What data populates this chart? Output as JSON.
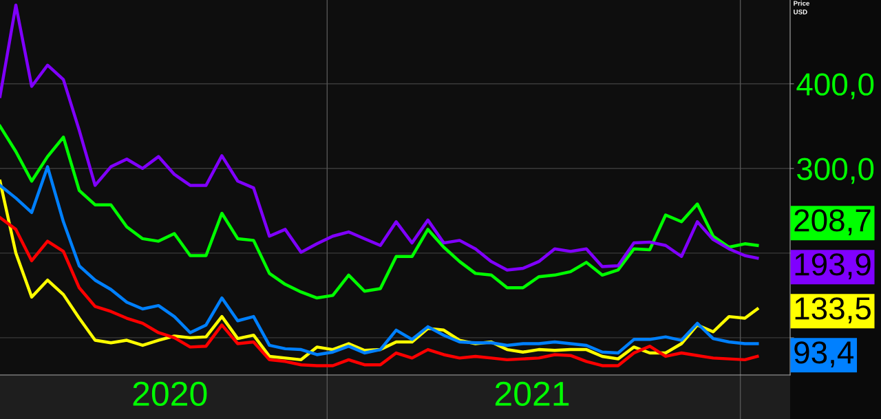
{
  "chart_data": {
    "type": "line",
    "ylabel": "Price\nUSD",
    "x": [
      "2020-03-18",
      "2020-04-01",
      "2020-04-15",
      "2020-04-29",
      "2020-05-13",
      "2020-05-27",
      "2020-06-10",
      "2020-06-24",
      "2020-07-08",
      "2020-07-22",
      "2020-08-05",
      "2020-08-19",
      "2020-09-02",
      "2020-09-16",
      "2020-09-30",
      "2020-10-14",
      "2020-10-28",
      "2020-11-11",
      "2020-11-25",
      "2020-12-09",
      "2020-12-23",
      "2021-01-06",
      "2021-01-20",
      "2021-02-03",
      "2021-02-17",
      "2021-03-03",
      "2021-03-17",
      "2021-03-31",
      "2021-04-14",
      "2021-04-28",
      "2021-05-12",
      "2021-05-26",
      "2021-06-09",
      "2021-06-23",
      "2021-07-07",
      "2021-07-21",
      "2021-08-04",
      "2021-08-18",
      "2021-09-01",
      "2021-09-15",
      "2021-09-29",
      "2021-10-13",
      "2021-10-27",
      "2021-11-10",
      "2021-11-24",
      "2021-12-08",
      "2021-12-22",
      "2022-01-05",
      "2022-01-16"
    ],
    "series": [
      {
        "color": "#00ff00",
        "values": [
          350,
          320,
          285,
          314,
          337,
          274,
          257,
          257,
          231,
          217,
          214,
          223,
          197,
          197,
          247,
          217,
          215,
          176,
          163,
          154,
          147,
          150,
          174,
          155,
          158,
          196,
          196,
          228,
          207,
          190,
          176,
          174,
          159,
          159,
          172,
          174,
          178,
          189,
          174,
          180,
          205,
          204,
          245,
          237,
          258,
          220,
          207,
          211,
          209
        ]
      },
      {
        "color": "#8000ff",
        "values": [
          385,
          493,
          397,
          422,
          405,
          345,
          280,
          302,
          311,
          300,
          314,
          293,
          280,
          280,
          315,
          285,
          277,
          220,
          228,
          201,
          211,
          220,
          225,
          217,
          209,
          237,
          212,
          239,
          212,
          215,
          205,
          190,
          180,
          182,
          190,
          205,
          202,
          205,
          184,
          185,
          212,
          213,
          209,
          196,
          237,
          216,
          205,
          197,
          194
        ]
      },
      {
        "color": "#ffff00",
        "values": [
          285,
          200,
          148,
          168,
          151,
          123,
          97,
          94,
          97,
          91,
          97,
          102,
          100,
          101,
          125,
          99,
          103,
          78,
          76,
          74,
          89,
          86,
          93,
          85,
          86,
          95,
          95,
          111,
          109,
          97,
          93,
          95,
          86,
          83,
          86,
          85,
          86,
          86,
          78,
          75,
          89,
          82,
          82,
          93,
          115,
          107,
          125,
          123,
          134
        ]
      },
      {
        "color": "#0080ff",
        "values": [
          280,
          265,
          248,
          302,
          237,
          185,
          168,
          157,
          142,
          134,
          138,
          125,
          106,
          115,
          147,
          120,
          125,
          91,
          87,
          86,
          80,
          83,
          90,
          82,
          86,
          109,
          98,
          113,
          103,
          95,
          94,
          94,
          91,
          93,
          93,
          95,
          93,
          91,
          83,
          82,
          98,
          98,
          101,
          97,
          117,
          99,
          95,
          93,
          93
        ]
      },
      {
        "color": "#ff0000",
        "values": [
          242,
          228,
          191,
          214,
          202,
          159,
          137,
          131,
          123,
          117,
          106,
          100,
          89,
          90,
          115,
          93,
          95,
          74,
          72,
          68,
          67,
          67,
          74,
          68,
          68,
          82,
          76,
          86,
          80,
          76,
          78,
          76,
          74,
          75,
          76,
          80,
          79,
          72,
          67,
          67,
          82,
          90,
          78,
          82,
          79,
          76,
          75,
          74,
          78
        ]
      }
    ],
    "xlim": [
      "2020-03-18",
      "2022-02-14"
    ],
    "xticks": [
      {
        "value": "2020-08-15",
        "label": "2020"
      },
      {
        "value": "2021-07-01",
        "label": "2021"
      }
    ],
    "ylim": [
      56,
      499
    ],
    "yticks": [
      {
        "value": 100,
        "label": null
      },
      {
        "value": 200,
        "label": null
      },
      {
        "value": 300,
        "label": "300,0"
      },
      {
        "value": 400,
        "label": "400,0"
      }
    ],
    "ref_lines": [
      {
        "axis": "x",
        "value": "2021-01-01",
        "color": "#555555"
      },
      {
        "axis": "x",
        "value": "2022-01-01",
        "color": "#555555"
      }
    ],
    "annotations": [
      {
        "text": "208,7",
        "x": "2022-01-16",
        "y": 208.7
      },
      {
        "text": "193,9",
        "x": "2022-01-16",
        "y": 193.9
      },
      {
        "text": "133,5",
        "x": "2022-01-16",
        "y": 133.5
      },
      {
        "text": "93,4",
        "x": "2022-01-16",
        "y": 93.4
      }
    ],
    "grid": "y",
    "legend": false,
    "line_style": "solid",
    "marker": "none"
  }
}
